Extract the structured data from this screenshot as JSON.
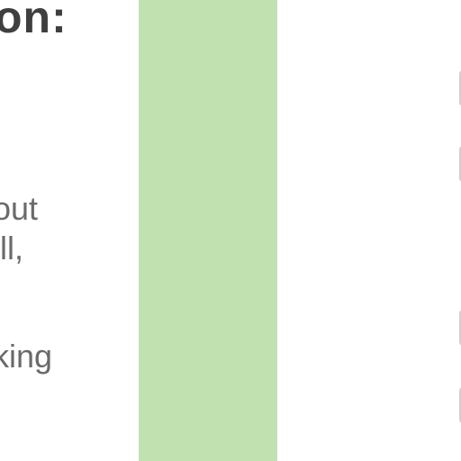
{
  "content": {
    "heading": "on:",
    "body_lines": [
      "out",
      "ill,",
      "",
      "king"
    ]
  },
  "colors": {
    "green_bar": "#c2e1b0",
    "heading_text": "#3f3f3f",
    "body_text": "#6a6a6a"
  }
}
